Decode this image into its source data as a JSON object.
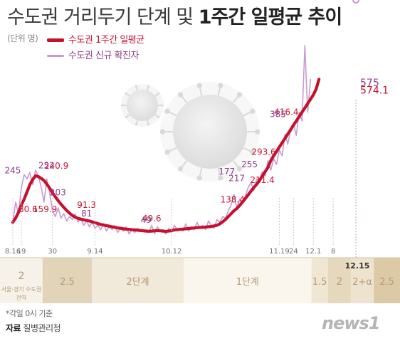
{
  "title_part1": "수도권 거리두기 단계 및 ",
  "title_part2": "1주간 일평균 추이",
  "unit": "(단위 명)",
  "legend": {
    "avg": "수도권 1주간 일평균",
    "daily": "수도권 신규 확진자"
  },
  "colors": {
    "avg": "#c4122e",
    "daily": "#c79bd0",
    "daily_label": "#8e3c8a",
    "avg_label": "#c4122e"
  },
  "footnote": "*각일 0시 기준",
  "source_label": "자료",
  "source_text": " 질병관리청",
  "logo": "news1",
  "chart_data": {
    "type": "line",
    "x_ticks": [
      "8.16",
      "19",
      "30",
      "9.14",
      "10.12",
      "11.19",
      "24",
      "12.1",
      "8",
      "12.15"
    ],
    "series": [
      {
        "name": "수도권 1주간 일평균",
        "labels": [
          {
            "text": "80.6",
            "value": 80.6
          },
          {
            "text": "159.9",
            "value": 159.9
          },
          {
            "text": "240.9",
            "value": 240.9
          },
          {
            "text": "91.3",
            "value": 91.3
          },
          {
            "text": "49.6",
            "value": 49.6
          },
          {
            "text": "138.4",
            "value": 138.4
          },
          {
            "text": "211.4",
            "value": 211.4
          },
          {
            "text": "293.6",
            "value": 293.6
          },
          {
            "text": "416.4",
            "value": 416.4
          },
          {
            "text": "574.1",
            "value": 574.1
          }
        ]
      },
      {
        "name": "수도권 신규 확진자",
        "labels": [
          {
            "text": "245",
            "value": 245
          },
          {
            "text": "252",
            "value": 252
          },
          {
            "text": "203",
            "value": 203
          },
          {
            "text": "81",
            "value": 81
          },
          {
            "text": "49",
            "value": 49
          },
          {
            "text": "177",
            "value": 177
          },
          {
            "text": "217",
            "value": 217
          },
          {
            "text": "255",
            "value": 255
          },
          {
            "text": "385",
            "value": 385
          },
          {
            "text": "575",
            "value": 575
          }
        ]
      }
    ],
    "avg_values": [
      80.6,
      95,
      115,
      140,
      159.9,
      185,
      210,
      228,
      240.9,
      238,
      232,
      225,
      212,
      198,
      182,
      168,
      155,
      143,
      132,
      121,
      112,
      104,
      98,
      94,
      91.3,
      89,
      87,
      85,
      82,
      79,
      76,
      73,
      71,
      69,
      67,
      65,
      63,
      61,
      60,
      58,
      57,
      56,
      55,
      54,
      53,
      52,
      51,
      50,
      49.6,
      50,
      51,
      52,
      51,
      50,
      49,
      50,
      52,
      54,
      55,
      56,
      57,
      58,
      59,
      60,
      61,
      62,
      63,
      63,
      64,
      65,
      66,
      68,
      70,
      75,
      82,
      90,
      100,
      110,
      120,
      128,
      138.4,
      150,
      162,
      175,
      188,
      200,
      211.4,
      225,
      240,
      255,
      270,
      293.6,
      310,
      325,
      340,
      355,
      370,
      385,
      400,
      416.4,
      430,
      445,
      460,
      475,
      490,
      505,
      520,
      540,
      574.1
    ],
    "daily_values": [
      80,
      150,
      110,
      200,
      245,
      230,
      252,
      210,
      260,
      240,
      203,
      150,
      230,
      180,
      120,
      100,
      130,
      95,
      110,
      85,
      100,
      90,
      110,
      81,
      95,
      70,
      85,
      65,
      80,
      60,
      70,
      55,
      75,
      50,
      65,
      55,
      70,
      45,
      60,
      50,
      65,
      40,
      55,
      45,
      60,
      50,
      49,
      55,
      45,
      70,
      40,
      65,
      50,
      55,
      40,
      60,
      45,
      70,
      55,
      60,
      50,
      75,
      50,
      65,
      55,
      80,
      60,
      70,
      55,
      85,
      70,
      60,
      90,
      80,
      100,
      95,
      120,
      140,
      177,
      130,
      160,
      145,
      170,
      200,
      217,
      190,
      230,
      220,
      255,
      240,
      293,
      260,
      300,
      280,
      330,
      310,
      385,
      350,
      400,
      420,
      380,
      460,
      430,
      690,
      460,
      575
    ],
    "stages": [
      {
        "label": "2",
        "note": "서울·경기 수도권 전역",
        "start": 0,
        "end": 13
      },
      {
        "label": "2.5",
        "note": "",
        "start": 13,
        "end": 28
      },
      {
        "label": "2단계",
        "note": "",
        "start": 28,
        "end": 56
      },
      {
        "label": "1단계",
        "note": "",
        "start": 56,
        "end": 95
      },
      {
        "label": "1.5",
        "note": "",
        "start": 95,
        "end": 100
      },
      {
        "label": "2",
        "note": "",
        "start": 100,
        "end": 107
      },
      {
        "label": "2+α",
        "note": "",
        "start": 107,
        "end": 114
      },
      {
        "label": "2.5",
        "note": "",
        "start": 114,
        "end": 122
      }
    ],
    "ylim": [
      0,
      700
    ]
  }
}
